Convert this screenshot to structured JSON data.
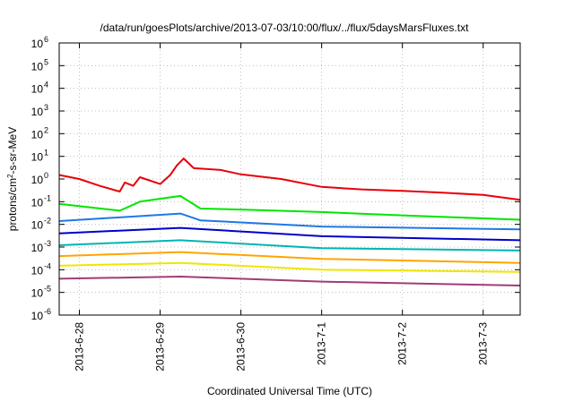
{
  "chart_data": {
    "type": "line",
    "title": "/data/run/goesPlots/archive/2013-07-03/10:00/flux/../flux/5daysMarsFluxes.txt",
    "xlabel": "Coordinated Universal Time (UTC)",
    "ylabel": {
      "before": "protons/cm",
      "sup": "2",
      "after": "-s-sr-MeV"
    },
    "yscale": "log",
    "ylim": [
      1e-06,
      1000000.0
    ],
    "xlim": [
      "2013-06-27T18:00",
      "2013-07-03T11:00"
    ],
    "grid": true,
    "xticks": [
      {
        "x": "2013-06-28",
        "label": "2013-6-28"
      },
      {
        "x": "2013-06-29",
        "label": "2013-6-29"
      },
      {
        "x": "2013-06-30",
        "label": "2013-6-30"
      },
      {
        "x": "2013-07-01",
        "label": "2013-7-1"
      },
      {
        "x": "2013-07-02",
        "label": "2013-7-2"
      },
      {
        "x": "2013-07-03",
        "label": "2013-7-3"
      }
    ],
    "yticks": [
      {
        "base": "10",
        "exp": "-6"
      },
      {
        "base": "10",
        "exp": "-5"
      },
      {
        "base": "10",
        "exp": "-4"
      },
      {
        "base": "10",
        "exp": "-3"
      },
      {
        "base": "10",
        "exp": "-2"
      },
      {
        "base": "10",
        "exp": "-1"
      },
      {
        "base": "10",
        "exp": "0"
      },
      {
        "base": "10",
        "exp": "1"
      },
      {
        "base": "10",
        "exp": "2"
      },
      {
        "base": "10",
        "exp": "3"
      },
      {
        "base": "10",
        "exp": "4"
      },
      {
        "base": "10",
        "exp": "5"
      },
      {
        "base": "10",
        "exp": "6"
      }
    ],
    "series": [
      {
        "color": "#e8000b",
        "values": [
          [
            "2013-06-27T18:00",
            1.5
          ],
          [
            "2013-06-28T00:00",
            1.0
          ],
          [
            "2013-06-28T06:00",
            0.5
          ],
          [
            "2013-06-28T12:00",
            0.28
          ],
          [
            "2013-06-28T13:30",
            0.7
          ],
          [
            "2013-06-28T16:00",
            0.5
          ],
          [
            "2013-06-28T18:00",
            1.2
          ],
          [
            "2013-06-29T00:00",
            0.6
          ],
          [
            "2013-06-29T03:00",
            1.5
          ],
          [
            "2013-06-29T05:00",
            4.0
          ],
          [
            "2013-06-29T07:00",
            8.0
          ],
          [
            "2013-06-29T10:00",
            3.0
          ],
          [
            "2013-06-29T18:00",
            2.5
          ],
          [
            "2013-06-30T00:00",
            1.6
          ],
          [
            "2013-06-30T12:00",
            1.0
          ],
          [
            "2013-07-01T00:00",
            0.45
          ],
          [
            "2013-07-01T12:00",
            0.35
          ],
          [
            "2013-07-02T00:00",
            0.3
          ],
          [
            "2013-07-02T12:00",
            0.25
          ],
          [
            "2013-07-03T00:00",
            0.2
          ],
          [
            "2013-07-03T11:00",
            0.12
          ]
        ]
      },
      {
        "color": "#00e600",
        "values": [
          [
            "2013-06-27T18:00",
            0.08
          ],
          [
            "2013-06-28T12:00",
            0.04
          ],
          [
            "2013-06-28T18:00",
            0.1
          ],
          [
            "2013-06-29T06:00",
            0.18
          ],
          [
            "2013-06-29T12:00",
            0.05
          ],
          [
            "2013-06-30T00:00",
            0.045
          ],
          [
            "2013-07-01T00:00",
            0.035
          ],
          [
            "2013-07-02T00:00",
            0.025
          ],
          [
            "2013-07-03T11:00",
            0.016
          ]
        ]
      },
      {
        "color": "#1e78e6",
        "values": [
          [
            "2013-06-27T18:00",
            0.014
          ],
          [
            "2013-06-29T06:00",
            0.03
          ],
          [
            "2013-06-29T12:00",
            0.015
          ],
          [
            "2013-07-01T00:00",
            0.008
          ],
          [
            "2013-07-03T11:00",
            0.006
          ]
        ]
      },
      {
        "color": "#0000c8",
        "values": [
          [
            "2013-06-27T18:00",
            0.004
          ],
          [
            "2013-06-29T06:00",
            0.007
          ],
          [
            "2013-07-01T00:00",
            0.003
          ],
          [
            "2013-07-03T11:00",
            0.002
          ]
        ]
      },
      {
        "color": "#00b4b4",
        "values": [
          [
            "2013-06-27T18:00",
            0.0012
          ],
          [
            "2013-06-29T06:00",
            0.002
          ],
          [
            "2013-07-01T00:00",
            0.0009
          ],
          [
            "2013-07-03T11:00",
            0.0007
          ]
        ]
      },
      {
        "color": "#ffa500",
        "values": [
          [
            "2013-06-27T18:00",
            0.0004
          ],
          [
            "2013-06-29T06:00",
            0.0006
          ],
          [
            "2013-07-01T00:00",
            0.0003
          ],
          [
            "2013-07-03T11:00",
            0.0002
          ]
        ]
      },
      {
        "color": "#f0e600",
        "values": [
          [
            "2013-06-27T18:00",
            0.00015
          ],
          [
            "2013-06-29T06:00",
            0.0002
          ],
          [
            "2013-07-01T00:00",
            0.0001
          ],
          [
            "2013-07-03T11:00",
            8e-05
          ]
        ]
      },
      {
        "color": "#a03c78",
        "values": [
          [
            "2013-06-27T18:00",
            4e-05
          ],
          [
            "2013-06-29T06:00",
            5e-05
          ],
          [
            "2013-07-01T00:00",
            3e-05
          ],
          [
            "2013-07-03T11:00",
            2e-05
          ]
        ]
      }
    ]
  }
}
